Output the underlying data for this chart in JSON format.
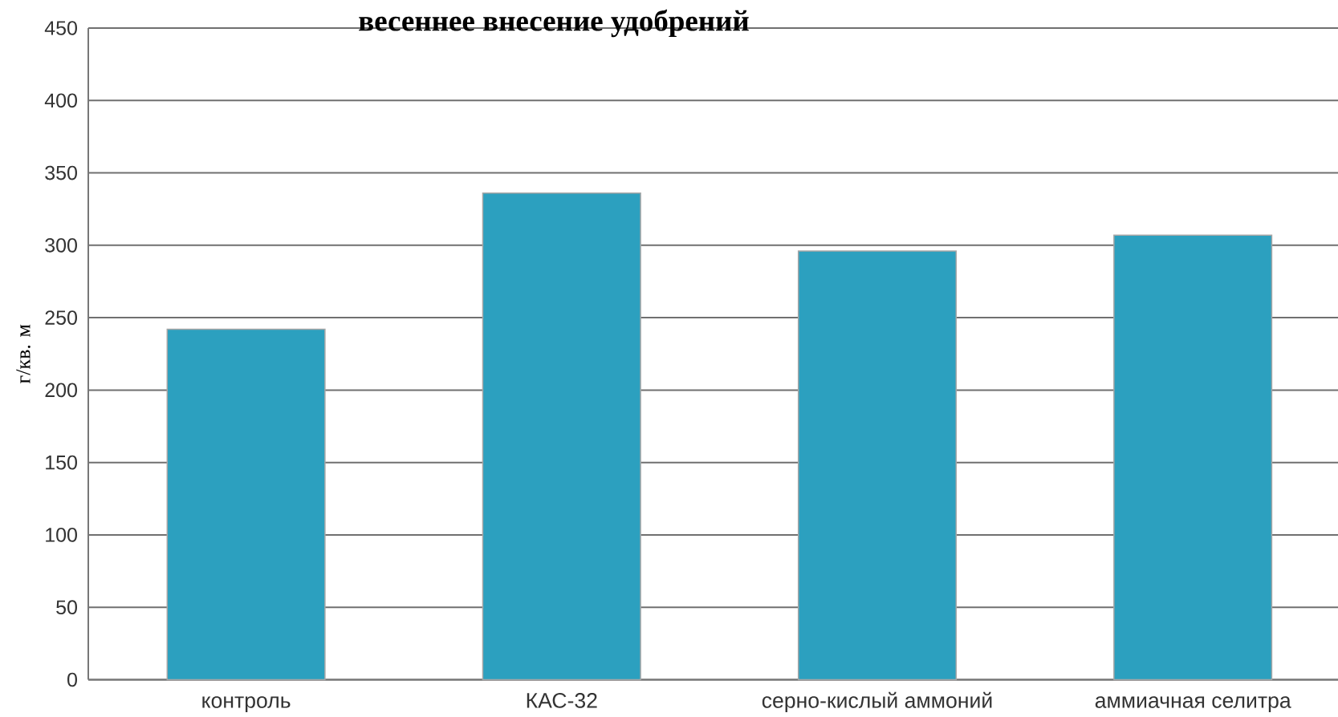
{
  "chart_data": {
    "type": "bar",
    "title": "весеннее внесение удобрений",
    "ylabel": "г/кв. м",
    "categories": [
      "контроль",
      "КАС-32",
      "серно-кислый аммоний",
      "аммиачная селитра"
    ],
    "values": [
      242,
      336,
      296,
      307
    ],
    "color": "#2ca0bf",
    "ylim": [
      0,
      450
    ],
    "yticks": [
      0,
      50,
      100,
      150,
      200,
      250,
      300,
      350,
      400,
      450
    ],
    "grid": "y"
  }
}
